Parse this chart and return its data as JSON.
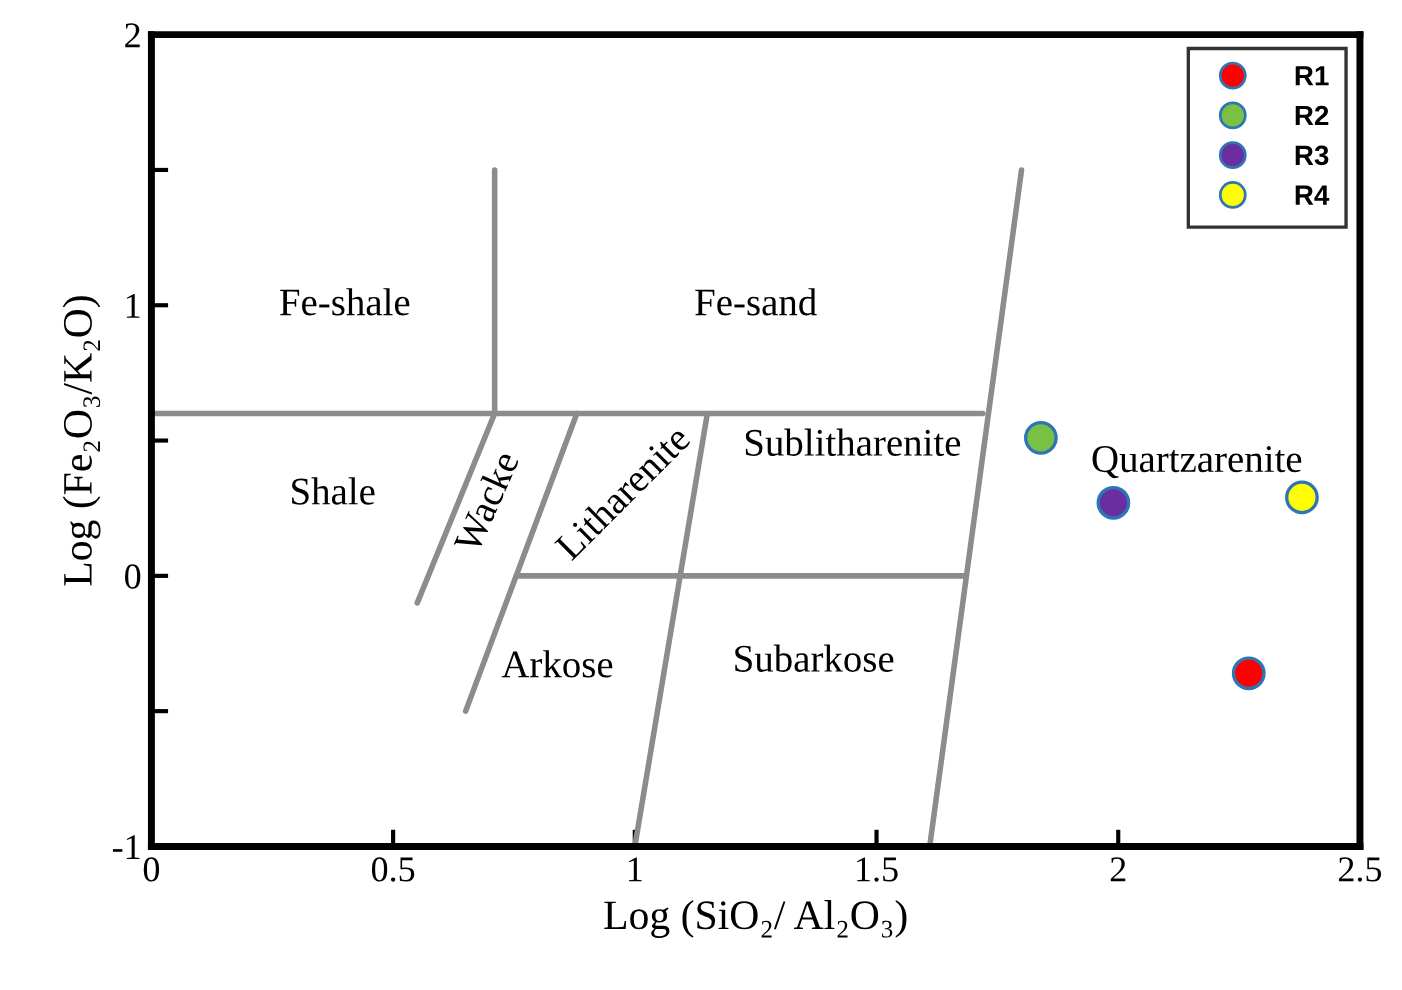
{
  "chart_data": {
    "type": "scatter",
    "xlabel": "Log (SiO₂/ Al₂O₃)",
    "ylabel": "Log (Fe₂O₃/K₂O)",
    "xlim": [
      0,
      2.5
    ],
    "ylim": [
      -1,
      2
    ],
    "xticks": [
      0,
      0.5,
      1,
      1.5,
      2,
      2.5
    ],
    "yticks": [
      -1,
      {
        "value": -0.5,
        "label": null
      },
      0,
      {
        "value": 0.5,
        "label": null
      },
      1,
      {
        "value": 1.5,
        "label": null
      },
      2
    ],
    "grid": false,
    "legend": "top right",
    "series": [
      {
        "type": "line",
        "color": "#8c8c8c",
        "x": [
          0,
          1.72
        ],
        "values": [
          0.6,
          0.6
        ]
      },
      {
        "type": "line",
        "color": "#8c8c8c",
        "x": [
          0.71,
          0.71,
          0.55
        ],
        "values": [
          1.5,
          0.6,
          -0.1
        ]
      },
      {
        "type": "line",
        "color": "#8c8c8c",
        "x": [
          1.8,
          1.61
        ],
        "values": [
          1.5,
          -1
        ]
      },
      {
        "type": "line",
        "color": "#8c8c8c",
        "x": [
          0.88,
          0.65
        ],
        "values": [
          0.6,
          -0.5
        ]
      },
      {
        "type": "line",
        "color": "#8c8c8c",
        "x": [
          1.15,
          1.0
        ],
        "values": [
          0.6,
          -1
        ]
      },
      {
        "type": "line",
        "color": "#8c8c8c",
        "x": [
          0.76,
          1.68
        ],
        "values": [
          0,
          0
        ]
      },
      {
        "name": "R1",
        "color": "#ff0000",
        "marker": "circle",
        "x": [
          2.27
        ],
        "values": [
          -0.36
        ]
      },
      {
        "name": "R2",
        "color": "#7ac143",
        "marker": "circle",
        "x": [
          1.84
        ],
        "values": [
          0.51
        ]
      },
      {
        "name": "R3",
        "color": "#6a2ea0",
        "marker": "circle",
        "x": [
          1.99
        ],
        "values": [
          0.27
        ]
      },
      {
        "name": "R4",
        "color": "#ffff00",
        "marker": "circle",
        "x": [
          2.38
        ],
        "values": [
          0.29
        ]
      }
    ],
    "annotations": [
      "Fe-shale",
      "Fe-sand",
      "Shale",
      "Wacke",
      "Litharenite",
      "Sublitharenite",
      "Quartzarenite",
      "Arkose",
      "Subarkose"
    ]
  }
}
